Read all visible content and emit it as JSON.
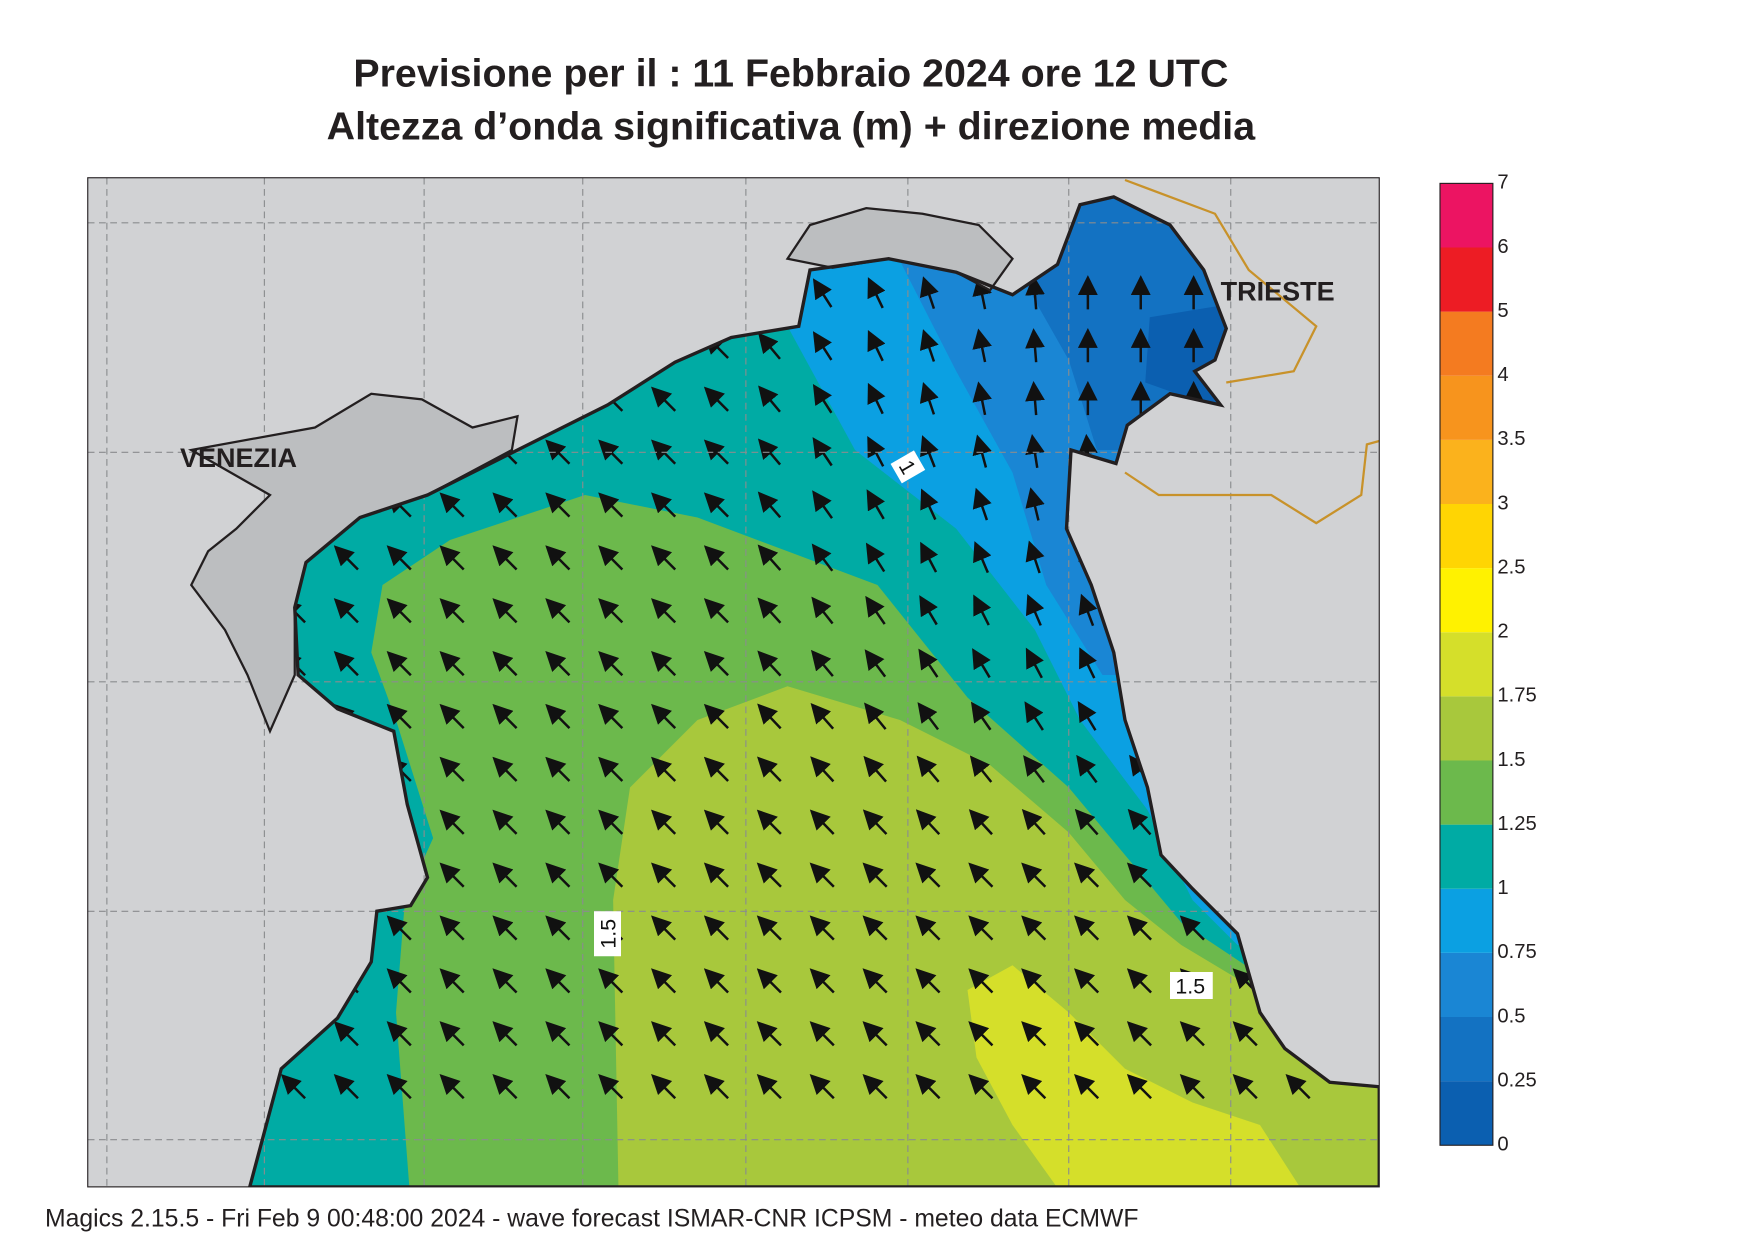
{
  "header": {
    "title_line1": "Previsione per il  :  11  Febbraio 2024   ore 12 UTC",
    "title_line2": "Altezza d’onda significativa (m) + direzione media"
  },
  "map": {
    "places": [
      "VENEZIA",
      "TRIESTE"
    ],
    "contour_labels": [
      "1",
      "1.5",
      "1.5"
    ]
  },
  "legend": {
    "levels": [
      0,
      0.25,
      0.5,
      0.75,
      1,
      1.25,
      1.5,
      1.75,
      2,
      2.5,
      3,
      3.5,
      4,
      5,
      6,
      7
    ],
    "colors": [
      "#0b5fb0",
      "#1372c2",
      "#1a86d4",
      "#0ba0e2",
      "#00aba4",
      "#6cb94c",
      "#a8c83c",
      "#d5df2a",
      "#fff200",
      "#ffd503",
      "#fbb21c",
      "#f7941d",
      "#f47b20",
      "#ed1c24",
      "#ec1462"
    ]
  },
  "footer": "Magics 2.15.5 - Fri Feb  9 00:48:00 2024 - wave forecast  ISMAR-CNR  ICPSM - meteo data   ECMWF"
}
